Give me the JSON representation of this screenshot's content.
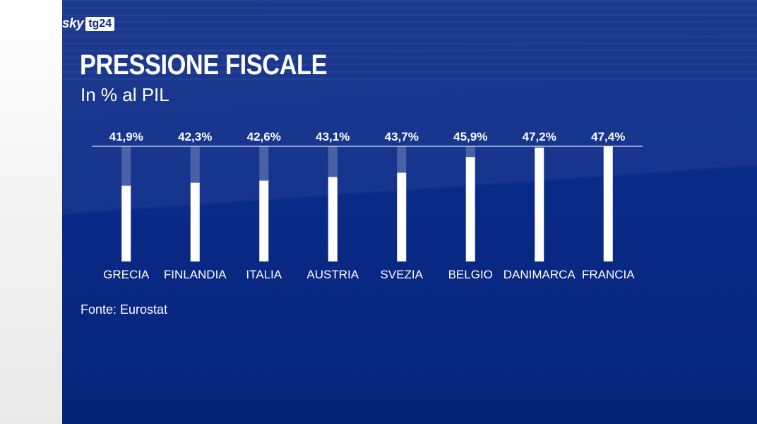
{
  "brand": {
    "sky": "sky",
    "tg": "tg24"
  },
  "header": {
    "title": "PRESSIONE FISCALE",
    "subtitle": "In % al PIL"
  },
  "footer": {
    "source": "Fonte: Eurostat"
  },
  "colors": {
    "panel": "#0a2a88",
    "bar": "#ffffff",
    "text": "#ffffff"
  },
  "chart_data": {
    "type": "bar",
    "title": "PRESSIONE FISCALE",
    "subtitle": "In % al PIL",
    "categories": [
      "GRECIA",
      "FINLANDIA",
      "ITALIA",
      "AUSTRIA",
      "SVEZIA",
      "BELGIO",
      "DANIMARCA",
      "FRANCIA"
    ],
    "values": [
      41.9,
      42.3,
      42.6,
      43.1,
      43.7,
      45.9,
      47.2,
      47.4
    ],
    "labels": [
      "41,9%",
      "42,3%",
      "42,6%",
      "43,1%",
      "43,7%",
      "45,9%",
      "47,2%",
      "47,4%"
    ],
    "ylim": [
      0,
      47.4
    ],
    "xlabel": "",
    "ylabel": "",
    "grid": false,
    "source": "Fonte: Eurostat"
  }
}
